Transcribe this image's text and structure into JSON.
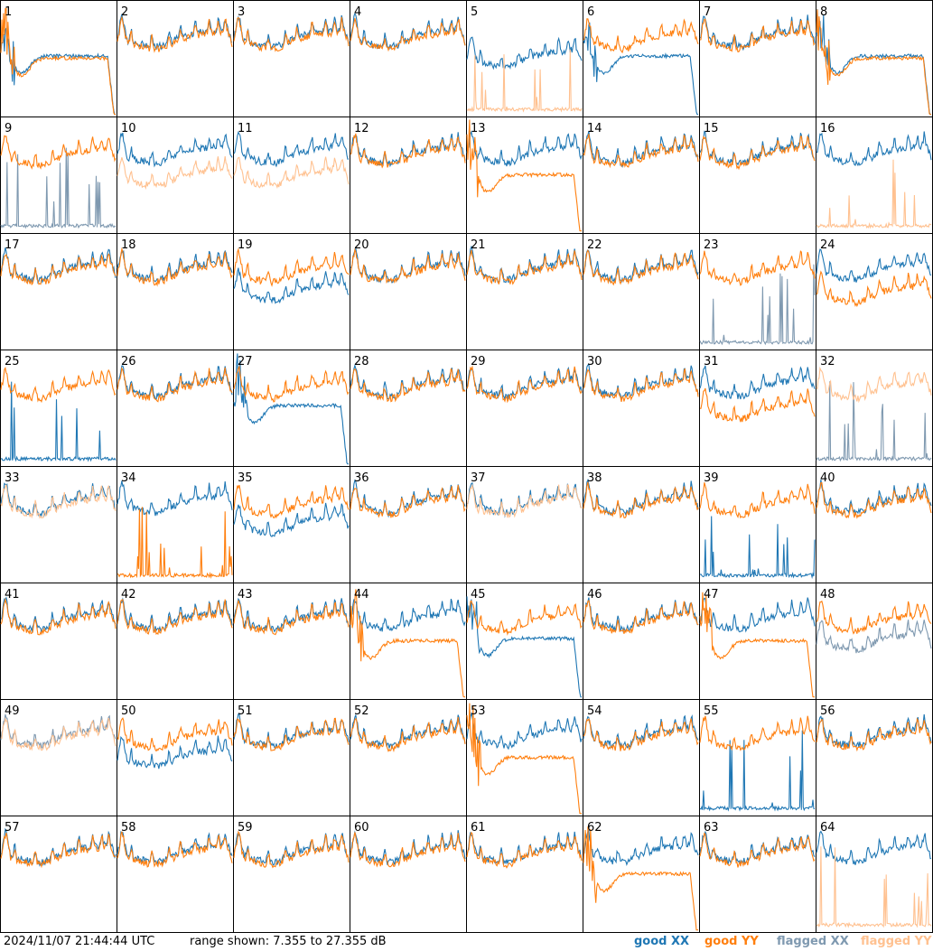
{
  "footer": {
    "timestamp": "2024/11/07 21:44:44 UTC",
    "range_text": "range shown: 7.355 to 27.355 dB"
  },
  "legend": [
    {
      "label": "good XX",
      "color": "#1f77b4"
    },
    {
      "label": "good YY",
      "color": "#ff7f0e"
    },
    {
      "label": "flagged XX",
      "color": "#7f99b0"
    },
    {
      "label": "flagged YY",
      "color": "#ffc190"
    }
  ],
  "chart_data": {
    "type": "line",
    "ylim": [
      7.355,
      27.355
    ],
    "grid": {
      "rows": 8,
      "cols": 8
    },
    "series_names": [
      "XX",
      "YY"
    ],
    "panels": [
      {
        "id": 1,
        "xx": "droop",
        "yy": "droop",
        "xx_flag": false,
        "yy_flag": false
      },
      {
        "id": 2,
        "xx": "normal",
        "yy": "normal",
        "xx_flag": false,
        "yy_flag": false
      },
      {
        "id": 3,
        "xx": "normal",
        "yy": "normal",
        "xx_flag": false,
        "yy_flag": false
      },
      {
        "id": 4,
        "xx": "normal",
        "yy": "normal",
        "xx_flag": false,
        "yy_flag": false
      },
      {
        "id": 5,
        "xx": "low",
        "yy": "spikes",
        "xx_flag": false,
        "yy_flag": true
      },
      {
        "id": 6,
        "xx": "droop",
        "yy": "normal",
        "xx_flag": false,
        "yy_flag": false
      },
      {
        "id": 7,
        "xx": "normal",
        "yy": "normal",
        "xx_flag": false,
        "yy_flag": false
      },
      {
        "id": 8,
        "xx": "droop",
        "yy": "droop",
        "xx_flag": false,
        "yy_flag": false
      },
      {
        "id": 9,
        "xx": "spikes",
        "yy": "normal",
        "xx_flag": true,
        "yy_flag": false
      },
      {
        "id": 10,
        "xx": "normal",
        "yy": "low",
        "xx_flag": false,
        "yy_flag": true
      },
      {
        "id": 11,
        "xx": "normal",
        "yy": "low",
        "xx_flag": false,
        "yy_flag": true
      },
      {
        "id": 12,
        "xx": "normal",
        "yy": "normal",
        "xx_flag": false,
        "yy_flag": false
      },
      {
        "id": 13,
        "xx": "normal",
        "yy": "droop",
        "xx_flag": false,
        "yy_flag": false
      },
      {
        "id": 14,
        "xx": "normal",
        "yy": "normal",
        "xx_flag": false,
        "yy_flag": false
      },
      {
        "id": 15,
        "xx": "normal",
        "yy": "normal",
        "xx_flag": false,
        "yy_flag": false
      },
      {
        "id": 16,
        "xx": "normal",
        "yy": "spikes",
        "xx_flag": false,
        "yy_flag": true
      },
      {
        "id": 17,
        "xx": "normal",
        "yy": "normal",
        "xx_flag": false,
        "yy_flag": false
      },
      {
        "id": 18,
        "xx": "normal",
        "yy": "normal",
        "xx_flag": false,
        "yy_flag": false
      },
      {
        "id": 19,
        "xx": "low",
        "yy": "normal",
        "xx_flag": false,
        "yy_flag": false
      },
      {
        "id": 20,
        "xx": "normal",
        "yy": "normal",
        "xx_flag": false,
        "yy_flag": false
      },
      {
        "id": 21,
        "xx": "normal",
        "yy": "normal",
        "xx_flag": false,
        "yy_flag": false
      },
      {
        "id": 22,
        "xx": "normal",
        "yy": "normal",
        "xx_flag": false,
        "yy_flag": false
      },
      {
        "id": 23,
        "xx": "spikes",
        "yy": "normal",
        "xx_flag": true,
        "yy_flag": false
      },
      {
        "id": 24,
        "xx": "normal",
        "yy": "low",
        "xx_flag": false,
        "yy_flag": false
      },
      {
        "id": 25,
        "xx": "spikes",
        "yy": "normal",
        "xx_flag": false,
        "yy_flag": false
      },
      {
        "id": 26,
        "xx": "normal",
        "yy": "normal",
        "xx_flag": false,
        "yy_flag": false
      },
      {
        "id": 27,
        "xx": "droop",
        "yy": "normal",
        "xx_flag": false,
        "yy_flag": false
      },
      {
        "id": 28,
        "xx": "normal",
        "yy": "normal",
        "xx_flag": false,
        "yy_flag": false
      },
      {
        "id": 29,
        "xx": "normal",
        "yy": "normal",
        "xx_flag": false,
        "yy_flag": false
      },
      {
        "id": 30,
        "xx": "normal",
        "yy": "normal",
        "xx_flag": false,
        "yy_flag": false
      },
      {
        "id": 31,
        "xx": "normal",
        "yy": "low",
        "xx_flag": false,
        "yy_flag": false
      },
      {
        "id": 32,
        "xx": "spikes",
        "yy": "normal",
        "xx_flag": true,
        "yy_flag": true
      },
      {
        "id": 33,
        "xx": "normal",
        "yy": "normal",
        "xx_flag": false,
        "yy_flag": true
      },
      {
        "id": 34,
        "xx": "normal",
        "yy": "spikes",
        "xx_flag": false,
        "yy_flag": false
      },
      {
        "id": 35,
        "xx": "low",
        "yy": "normal",
        "xx_flag": false,
        "yy_flag": false
      },
      {
        "id": 36,
        "xx": "normal",
        "yy": "normal",
        "xx_flag": false,
        "yy_flag": false
      },
      {
        "id": 37,
        "xx": "normal",
        "yy": "normal",
        "xx_flag": false,
        "yy_flag": true
      },
      {
        "id": 38,
        "xx": "normal",
        "yy": "normal",
        "xx_flag": false,
        "yy_flag": false
      },
      {
        "id": 39,
        "xx": "spikes",
        "yy": "normal",
        "xx_flag": false,
        "yy_flag": false
      },
      {
        "id": 40,
        "xx": "normal",
        "yy": "normal",
        "xx_flag": false,
        "yy_flag": false
      },
      {
        "id": 41,
        "xx": "normal",
        "yy": "normal",
        "xx_flag": false,
        "yy_flag": false
      },
      {
        "id": 42,
        "xx": "normal",
        "yy": "normal",
        "xx_flag": false,
        "yy_flag": false
      },
      {
        "id": 43,
        "xx": "normal",
        "yy": "normal",
        "xx_flag": false,
        "yy_flag": false
      },
      {
        "id": 44,
        "xx": "normal",
        "yy": "droop",
        "xx_flag": false,
        "yy_flag": false
      },
      {
        "id": 45,
        "xx": "droop",
        "yy": "normal",
        "xx_flag": false,
        "yy_flag": false
      },
      {
        "id": 46,
        "xx": "normal",
        "yy": "normal",
        "xx_flag": false,
        "yy_flag": false
      },
      {
        "id": 47,
        "xx": "normal",
        "yy": "droop",
        "xx_flag": false,
        "yy_flag": false
      },
      {
        "id": 48,
        "xx": "low",
        "yy": "normal",
        "xx_flag": true,
        "yy_flag": false
      },
      {
        "id": 49,
        "xx": "normal",
        "yy": "normal",
        "xx_flag": true,
        "yy_flag": true
      },
      {
        "id": 50,
        "xx": "low",
        "yy": "normal",
        "xx_flag": false,
        "yy_flag": false
      },
      {
        "id": 51,
        "xx": "normal",
        "yy": "normal",
        "xx_flag": false,
        "yy_flag": false
      },
      {
        "id": 52,
        "xx": "normal",
        "yy": "normal",
        "xx_flag": false,
        "yy_flag": false
      },
      {
        "id": 53,
        "xx": "normal",
        "yy": "droop",
        "xx_flag": false,
        "yy_flag": false
      },
      {
        "id": 54,
        "xx": "normal",
        "yy": "normal",
        "xx_flag": false,
        "yy_flag": false
      },
      {
        "id": 55,
        "xx": "spikes",
        "yy": "normal",
        "xx_flag": false,
        "yy_flag": false
      },
      {
        "id": 56,
        "xx": "normal",
        "yy": "normal",
        "xx_flag": false,
        "yy_flag": false
      },
      {
        "id": 57,
        "xx": "normal",
        "yy": "normal",
        "xx_flag": false,
        "yy_flag": false
      },
      {
        "id": 58,
        "xx": "normal",
        "yy": "normal",
        "xx_flag": false,
        "yy_flag": false
      },
      {
        "id": 59,
        "xx": "normal",
        "yy": "normal",
        "xx_flag": false,
        "yy_flag": false
      },
      {
        "id": 60,
        "xx": "normal",
        "yy": "normal",
        "xx_flag": false,
        "yy_flag": false
      },
      {
        "id": 61,
        "xx": "normal",
        "yy": "normal",
        "xx_flag": false,
        "yy_flag": false
      },
      {
        "id": 62,
        "xx": "normal",
        "yy": "droop",
        "xx_flag": false,
        "yy_flag": false
      },
      {
        "id": 63,
        "xx": "normal",
        "yy": "normal",
        "xx_flag": false,
        "yy_flag": false
      },
      {
        "id": 64,
        "xx": "normal",
        "yy": "spikes",
        "xx_flag": false,
        "yy_flag": true
      }
    ]
  }
}
